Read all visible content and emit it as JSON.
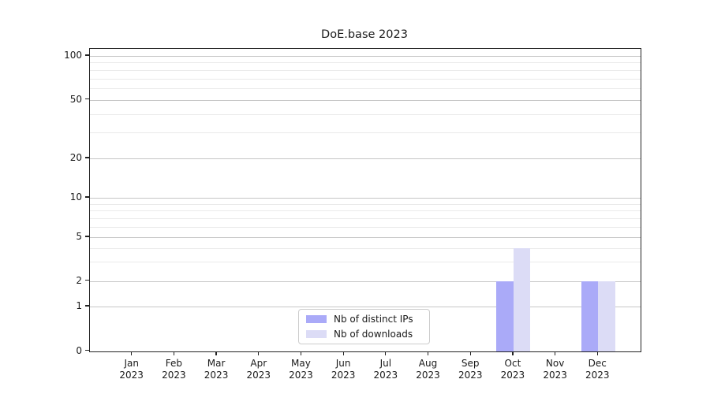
{
  "chart_data": {
    "type": "bar",
    "title": "DoE.base 2023",
    "year_label": "2023",
    "categories": [
      "Jan",
      "Feb",
      "Mar",
      "Apr",
      "May",
      "Jun",
      "Jul",
      "Aug",
      "Sep",
      "Oct",
      "Nov",
      "Dec"
    ],
    "series": [
      {
        "name": "Nb of distinct IPs",
        "color": "#aaaaf8",
        "values": [
          0,
          0,
          0,
          0,
          0,
          0,
          0,
          0,
          0,
          2,
          0,
          2
        ]
      },
      {
        "name": "Nb of downloads",
        "color": "#dcdcf6",
        "values": [
          0,
          0,
          0,
          0,
          0,
          0,
          0,
          0,
          0,
          4,
          0,
          2
        ]
      }
    ],
    "yticks": [
      0,
      1,
      2,
      5,
      10,
      20,
      50,
      100
    ],
    "minor_grid_values": [
      3,
      4,
      6,
      7,
      8,
      9,
      30,
      40,
      60,
      70,
      80,
      90
    ],
    "yscale": "symlog",
    "ylim": [
      0,
      110
    ],
    "xlabel": "",
    "ylabel": "",
    "grid": {
      "major": true,
      "minor": true,
      "orientation": "horizontal"
    },
    "legend": {
      "position": "lower center",
      "border": true
    }
  },
  "colors": {
    "background": "#ffffff",
    "text": "#1a1a1a",
    "spine": "#222222",
    "major_grid": "#c6c6c6",
    "minor_grid": "#eaeaea",
    "legend_border": "#cccccc"
  }
}
